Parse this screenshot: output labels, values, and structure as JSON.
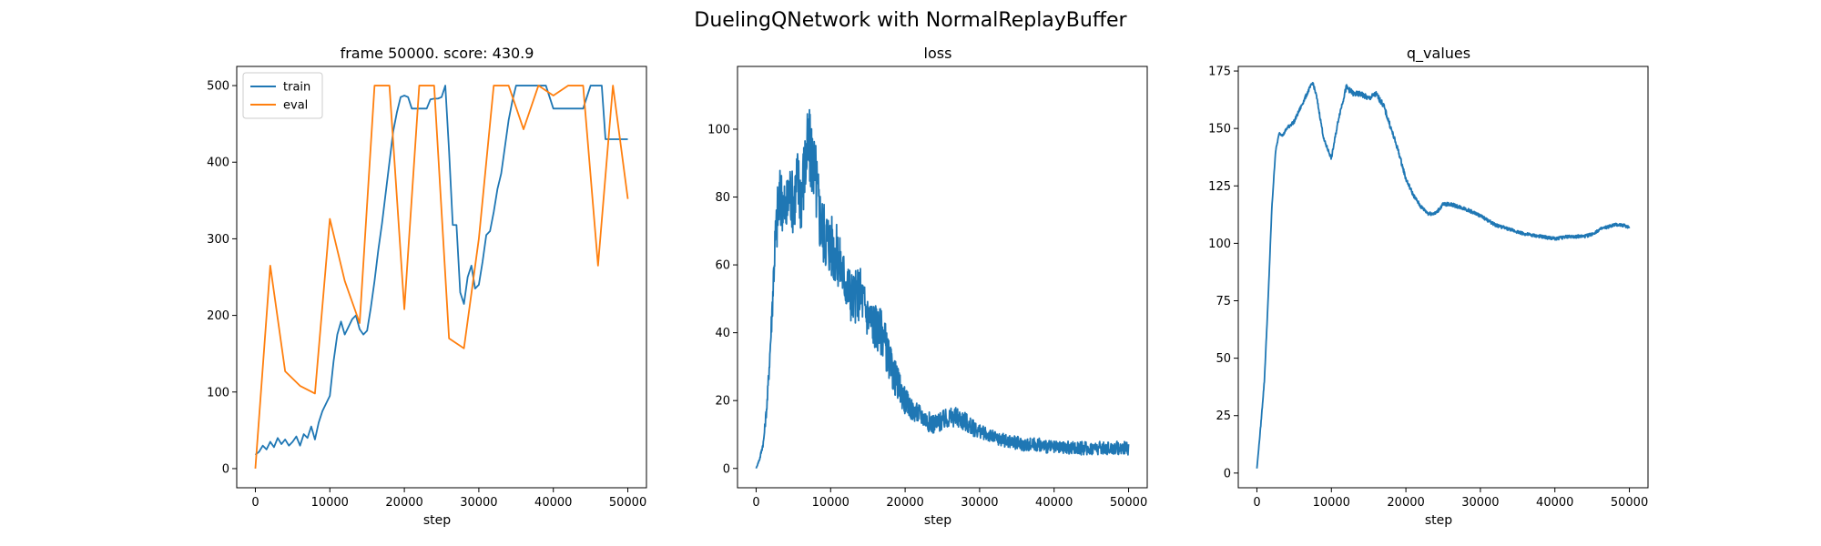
{
  "figure": {
    "suptitle": "DuelingQNetwork with NormalReplayBuffer"
  },
  "chart_data": [
    {
      "type": "line",
      "title": "frame 50000. score: 430.9",
      "xlabel": "step",
      "ylabel": "",
      "xlim": [
        -2500,
        52500
      ],
      "ylim": [
        -25,
        525
      ],
      "xticks": [
        0,
        10000,
        20000,
        30000,
        40000,
        50000
      ],
      "yticks": [
        0,
        100,
        200,
        300,
        400,
        500
      ],
      "legend": "upper-left",
      "series": [
        {
          "name": "train",
          "color": "#1f77b4",
          "x": [
            0,
            500,
            1000,
            1500,
            2000,
            2500,
            3000,
            3500,
            4000,
            4500,
            5000,
            5500,
            6000,
            6500,
            7000,
            7500,
            8000,
            8500,
            9000,
            9500,
            10000,
            10500,
            11000,
            11500,
            12000,
            12500,
            13000,
            13500,
            14000,
            14500,
            15000,
            15500,
            16000,
            16500,
            17000,
            17500,
            18000,
            18500,
            19000,
            19500,
            20000,
            20500,
            21000,
            21500,
            22000,
            22500,
            23000,
            23500,
            24000,
            24500,
            25000,
            25500,
            26000,
            26500,
            27000,
            27500,
            28000,
            28500,
            29000,
            29500,
            30000,
            30500,
            31000,
            31500,
            32000,
            32500,
            33000,
            33500,
            34000,
            34500,
            35000,
            35500,
            36000,
            37000,
            38000,
            39000,
            40000,
            41000,
            42000,
            43000,
            44000,
            45000,
            46000,
            46500,
            47000,
            48000,
            49000,
            50000
          ],
          "values": [
            18,
            22,
            30,
            25,
            35,
            28,
            40,
            32,
            38,
            30,
            35,
            42,
            30,
            45,
            40,
            55,
            38,
            60,
            75,
            85,
            95,
            140,
            175,
            192,
            175,
            185,
            195,
            200,
            182,
            175,
            180,
            210,
            245,
            285,
            320,
            360,
            400,
            440,
            465,
            485,
            487,
            485,
            470,
            470,
            470,
            470,
            470,
            482,
            483,
            483,
            485,
            500,
            415,
            318,
            318,
            230,
            215,
            250,
            265,
            235,
            240,
            270,
            305,
            310,
            335,
            365,
            385,
            420,
            455,
            480,
            500,
            500,
            500,
            500,
            500,
            500,
            470,
            470,
            470,
            470,
            470,
            500,
            500,
            500,
            430,
            430,
            430,
            430
          ]
        },
        {
          "name": "eval",
          "color": "#ff7f0e",
          "x": [
            0,
            2000,
            4000,
            6000,
            8000,
            10000,
            12000,
            14000,
            16000,
            18000,
            20000,
            22000,
            24000,
            26000,
            28000,
            30000,
            32000,
            34000,
            36000,
            38000,
            40000,
            42000,
            44000,
            46000,
            48000,
            50000
          ],
          "values": [
            0,
            265,
            127,
            108,
            98,
            326,
            245,
            190,
            500,
            500,
            208,
            500,
            500,
            170,
            157,
            300,
            500,
            500,
            443,
            500,
            487,
            500,
            500,
            265,
            500,
            352
          ]
        }
      ]
    },
    {
      "type": "line",
      "title": "loss",
      "xlabel": "step",
      "ylabel": "",
      "xlim": [
        -2500,
        52500
      ],
      "ylim": [
        -5.7,
        118.5
      ],
      "xticks": [
        0,
        10000,
        20000,
        30000,
        40000,
        50000
      ],
      "yticks": [
        0,
        20,
        40,
        60,
        80,
        100
      ],
      "series": [
        {
          "name": "",
          "color": "#1f77b4",
          "x": [
            0,
            500,
            1000,
            1500,
            2000,
            2500,
            3000,
            3500,
            4000,
            4500,
            5000,
            5500,
            6000,
            6500,
            7000,
            7500,
            8000,
            8500,
            9000,
            9500,
            10000,
            11000,
            12000,
            13000,
            14000,
            15000,
            16000,
            17000,
            18000,
            19000,
            20000,
            21000,
            22000,
            23000,
            24000,
            25000,
            26000,
            27000,
            28000,
            29000,
            30000,
            32000,
            34000,
            36000,
            38000,
            40000,
            42000,
            44000,
            46000,
            48000,
            50000
          ],
          "values": [
            0,
            3,
            8,
            20,
            40,
            65,
            78,
            80,
            75,
            82,
            78,
            85,
            80,
            88,
            95,
            92,
            85,
            75,
            70,
            68,
            66,
            62,
            55,
            50,
            52,
            45,
            42,
            40,
            30,
            25,
            20,
            17,
            16,
            14,
            13,
            14,
            15,
            15,
            14,
            12,
            11,
            9,
            8,
            7,
            7,
            6,
            6,
            6,
            6,
            6,
            6
          ],
          "noise_amplitude": [
            0,
            0.5,
            1,
            2,
            4,
            8,
            10,
            10,
            9,
            10,
            9,
            11,
            11,
            12,
            12,
            12,
            12,
            11,
            10,
            10,
            10,
            9,
            8,
            8,
            8,
            7,
            7,
            7,
            6,
            5,
            4,
            3,
            3,
            3,
            3,
            3,
            3,
            3,
            3,
            2.5,
            2,
            2,
            2,
            2,
            2,
            2,
            2,
            2,
            2,
            2,
            2
          ]
        }
      ]
    },
    {
      "type": "line",
      "title": "q_values",
      "xlabel": "step",
      "ylabel": "",
      "xlim": [
        -2500,
        52500
      ],
      "ylim": [
        -6.4,
        177
      ],
      "xticks": [
        0,
        10000,
        20000,
        30000,
        40000,
        50000
      ],
      "yticks": [
        0,
        25,
        50,
        75,
        100,
        125,
        150,
        175
      ],
      "series": [
        {
          "name": "",
          "color": "#1f77b4",
          "x": [
            0,
            500,
            1000,
            1500,
            2000,
            2500,
            3000,
            3500,
            4000,
            5000,
            6000,
            7000,
            7500,
            8000,
            9000,
            10000,
            11000,
            12000,
            13000,
            14000,
            15000,
            16000,
            17000,
            18000,
            19000,
            20000,
            21000,
            22000,
            23000,
            24000,
            25000,
            26000,
            27000,
            28000,
            30000,
            32000,
            34000,
            36000,
            38000,
            40000,
            42000,
            44000,
            45000,
            46000,
            47000,
            48000,
            49000,
            50000
          ],
          "values": [
            2,
            20,
            40,
            75,
            115,
            140,
            148,
            147,
            150,
            153,
            160,
            167,
            170,
            164,
            145,
            137,
            155,
            168,
            165,
            165,
            163,
            165,
            160,
            150,
            140,
            128,
            121,
            116,
            113,
            113,
            117,
            117,
            116,
            115,
            112,
            108,
            106,
            104,
            103,
            102,
            103,
            103,
            104,
            106,
            107,
            108,
            108,
            107
          ],
          "noise_amplitude": [
            0,
            0.5,
            0.5,
            0.5,
            0.5,
            0.5,
            0.5,
            0.5,
            0.8,
            0.8,
            0.8,
            0.8,
            0.8,
            0.8,
            0.8,
            0.8,
            1,
            1.2,
            1.2,
            1.2,
            1.2,
            1.2,
            1.2,
            1.2,
            1,
            1,
            0.8,
            0.8,
            0.8,
            0.8,
            0.8,
            0.8,
            0.8,
            0.8,
            0.7,
            0.7,
            0.7,
            0.7,
            0.7,
            0.7,
            0.7,
            0.7,
            0.7,
            0.7,
            0.7,
            0.7,
            0.7,
            0.7
          ]
        }
      ]
    }
  ]
}
